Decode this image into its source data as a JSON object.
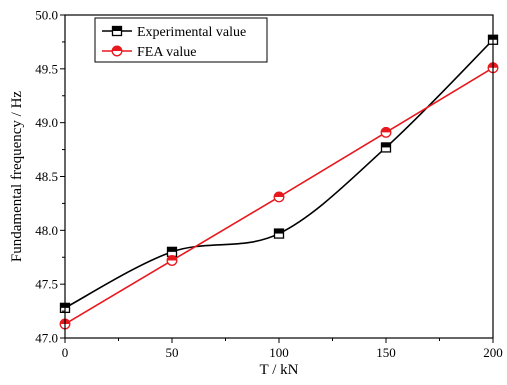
{
  "chart_data": {
    "type": "line",
    "title": "",
    "xlabel": "T / kN",
    "ylabel": "Fundamental frequency / Hz",
    "xlim": [
      0,
      200
    ],
    "ylim": [
      47.0,
      50.0
    ],
    "x_ticks": [
      "0",
      "50",
      "100",
      "150",
      "200"
    ],
    "y_ticks": [
      "47.0",
      "47.5",
      "48.0",
      "48.5",
      "49.0",
      "49.5",
      "50.0"
    ],
    "grid": false,
    "legend_position": "top-left",
    "x": [
      0,
      50,
      100,
      150,
      200
    ],
    "series": [
      {
        "name": "Experimental value",
        "color": "#000000",
        "marker": "half-filled-square",
        "line": "smooth",
        "values": [
          47.28,
          47.8,
          47.97,
          48.77,
          49.77
        ]
      },
      {
        "name": "FEA value",
        "color": "#e8191e",
        "marker": "half-filled-circle",
        "line": "straight",
        "values": [
          47.13,
          47.72,
          48.31,
          48.91,
          49.51
        ]
      }
    ]
  }
}
